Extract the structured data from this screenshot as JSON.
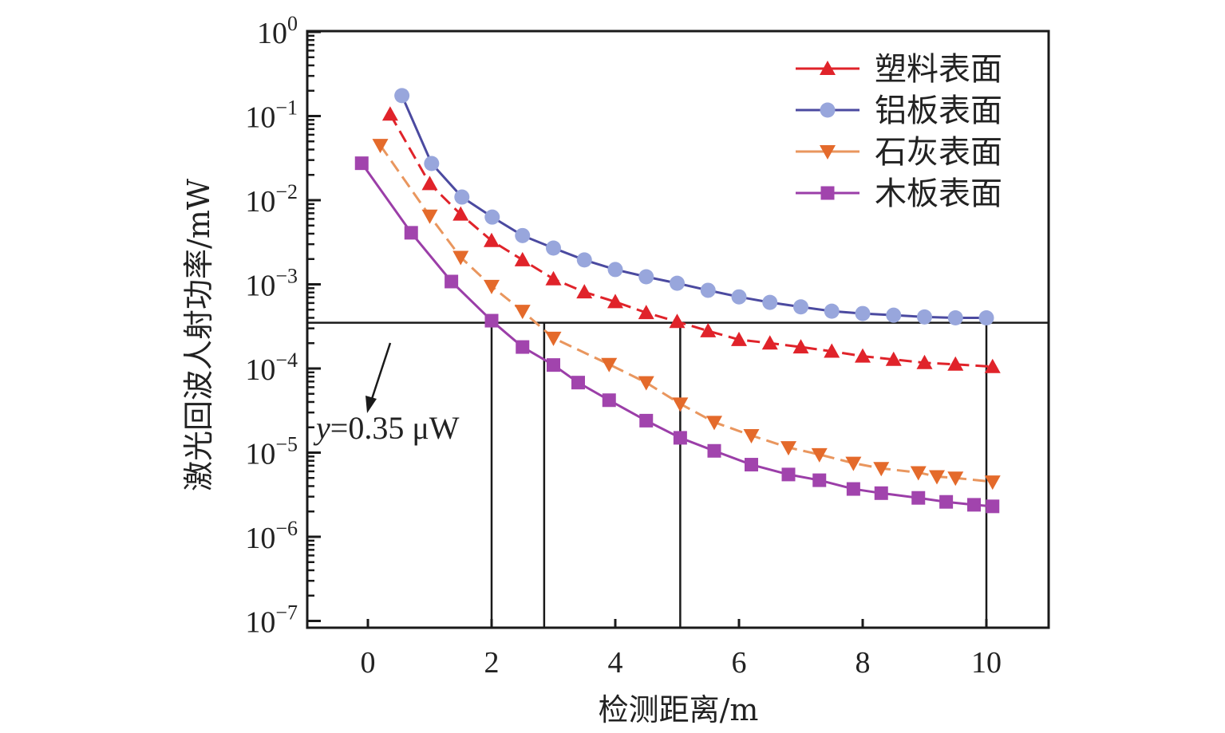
{
  "chart_data": {
    "type": "line",
    "title": "",
    "xlabel": "检测距离/m",
    "ylabel": "激光回波人射功率/mW",
    "xlim": [
      -1,
      11
    ],
    "ylim_log10": [
      -7,
      0
    ],
    "yscale": "log",
    "grid": false,
    "legend_position": "top-right",
    "x_ticks": [
      0,
      2,
      4,
      6,
      8,
      10
    ],
    "x_tick_labels": [
      "0",
      "2",
      "4",
      "6",
      "8",
      "10"
    ],
    "y_ticks": [
      {
        "base": "10",
        "exp": "0",
        "value": 1
      },
      {
        "base": "10",
        "exp": "−1",
        "value": 0.1
      },
      {
        "base": "10",
        "exp": "−2",
        "value": 0.01
      },
      {
        "base": "10",
        "exp": "−3",
        "value": 0.001
      },
      {
        "base": "10",
        "exp": "−4",
        "value": 0.0001
      },
      {
        "base": "10",
        "exp": "−5",
        "value": 1e-05
      },
      {
        "base": "10",
        "exp": "−6",
        "value": 1e-06
      },
      {
        "base": "10",
        "exp": "−7",
        "value": 1e-07
      }
    ],
    "threshold": {
      "y": 0.00035,
      "label_var": "y",
      "label_rest": "=0.35 μW",
      "crossing_x": [
        2.0,
        2.85,
        5.05,
        10.0
      ]
    },
    "series": [
      {
        "name": "塑料表面",
        "color": "#e0232a",
        "marker": "triangle-up",
        "marker_color": "#e0232a",
        "line_style": "dashed",
        "x": [
          0.36,
          1.0,
          1.5,
          2.0,
          2.5,
          3.0,
          3.5,
          4.0,
          4.5,
          5.0,
          5.5,
          6.0,
          6.5,
          7.0,
          7.5,
          8.0,
          8.5,
          9.0,
          9.5,
          10.1
        ],
        "y": [
          0.105,
          0.0157,
          0.0068,
          0.0033,
          0.00195,
          0.00116,
          0.00081,
          0.00062,
          0.00046,
          0.00036,
          0.00028,
          0.00022,
          0.0002,
          0.00018,
          0.00016,
          0.00014,
          0.000128,
          0.000117,
          0.000112,
          0.000105
        ]
      },
      {
        "name": "铝板表面",
        "color": "#4b4aa0",
        "marker": "circle",
        "marker_color": "#98a6dc",
        "line_style": "solid",
        "x": [
          0.55,
          1.03,
          1.52,
          2.01,
          2.5,
          3.0,
          3.5,
          4.0,
          4.5,
          5.0,
          5.5,
          6.0,
          6.5,
          7.0,
          7.5,
          8.0,
          8.5,
          9.0,
          9.5,
          10.0
        ],
        "y": [
          0.175,
          0.0273,
          0.0109,
          0.0063,
          0.0038,
          0.0027,
          0.00195,
          0.0015,
          0.00123,
          0.00103,
          0.00085,
          0.00071,
          0.00061,
          0.00054,
          0.00048,
          0.00045,
          0.00043,
          0.00041,
          0.0004,
          0.0004
        ]
      },
      {
        "name": "石灰表面",
        "color": "#e9965e",
        "marker": "triangle-down",
        "marker_color": "#e46a2b",
        "line_style": "dash-dot",
        "x": [
          0.2,
          1.0,
          1.5,
          2.0,
          2.5,
          3.0,
          3.9,
          4.5,
          5.05,
          5.6,
          6.2,
          6.8,
          7.3,
          7.85,
          8.3,
          8.9,
          9.2,
          9.5,
          10.1
        ],
        "y": [
          0.045,
          0.0065,
          0.0021,
          0.00095,
          0.00048,
          0.00023,
          0.000112,
          6.8e-05,
          3.8e-05,
          2.3e-05,
          1.6e-05,
          1.15e-05,
          9.5e-06,
          7.5e-06,
          6.5e-06,
          5.8e-06,
          5.2e-06,
          5e-06,
          4.5e-06
        ]
      },
      {
        "name": "木板表面",
        "color": "#9b3ea8",
        "marker": "square",
        "marker_color": "#a144ad",
        "line_style": "solid",
        "x": [
          -0.1,
          0.7,
          1.35,
          2.0,
          2.5,
          3.0,
          3.4,
          3.9,
          4.5,
          5.05,
          5.6,
          6.2,
          6.8,
          7.3,
          7.85,
          8.3,
          8.9,
          9.35,
          9.8,
          10.1
        ],
        "y": [
          0.0275,
          0.0041,
          0.00108,
          0.00037,
          0.00018,
          0.00011,
          6.8e-05,
          4.2e-05,
          2.4e-05,
          1.5e-05,
          1.05e-05,
          7.2e-06,
          5.5e-06,
          4.7e-06,
          3.7e-06,
          3.3e-06,
          2.9e-06,
          2.6e-06,
          2.4e-06,
          2.3e-06
        ]
      }
    ]
  }
}
